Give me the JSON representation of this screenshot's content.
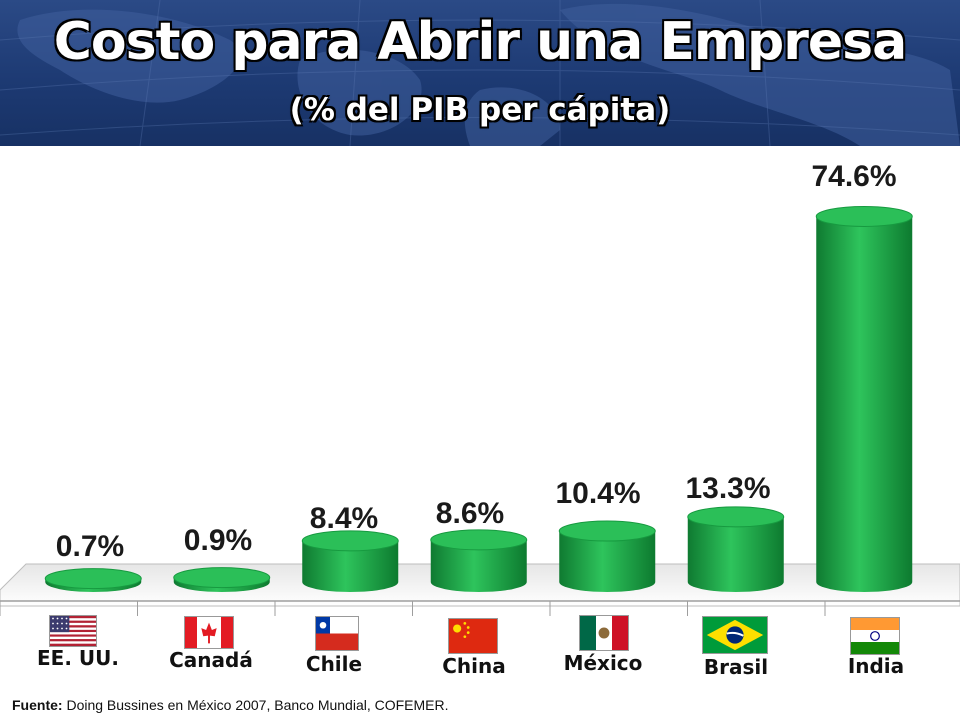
{
  "header": {
    "title": "Costo para Abrir una Empresa",
    "subtitle": "(% del PIB per cápita)"
  },
  "chart_data": {
    "type": "bar",
    "title": "Costo para Abrir una Empresa",
    "subtitle": "(% del PIB per cápita)",
    "categories": [
      "EE. UU.",
      "Canadá",
      "Chile",
      "China",
      "México",
      "Brasil",
      "India"
    ],
    "values": [
      0.7,
      0.9,
      8.4,
      8.6,
      10.4,
      13.3,
      74.6
    ],
    "data_labels": [
      "0.7%",
      "0.9%",
      "8.4%",
      "8.6%",
      "10.4%",
      "13.3%",
      "74.6%"
    ],
    "ylim": [
      0,
      80
    ],
    "grid": false,
    "bar_color": "#1fa64a"
  },
  "flags": [
    "us-flag-icon",
    "canada-flag-icon",
    "chile-flag-icon",
    "china-flag-icon",
    "mexico-flag-icon",
    "brazil-flag-icon",
    "india-flag-icon"
  ],
  "source": {
    "label": "Fuente:",
    "text": " Doing Bussines en México 2007, Banco Mundial, COFEMER."
  }
}
